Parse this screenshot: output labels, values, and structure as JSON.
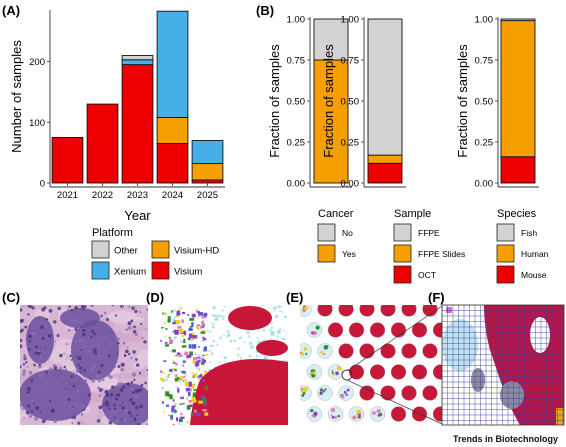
{
  "panel_labels": {
    "A": "(A)",
    "B": "(B)",
    "C": "(C)",
    "D": "(D)",
    "E": "(E)",
    "F": "(F)"
  },
  "credit": "Trends in Biotechnology",
  "colors": {
    "Other": "#d3d3d3",
    "Visium-HD": "#f5a000",
    "Xenium": "#45b0e8",
    "Visium": "#ee0000",
    "No": "#d3d3d3",
    "Yes": "#f5a000",
    "FFPE": "#d3d3d3",
    "FFPE Slides": "#f5a000",
    "OCT": "#ee0000",
    "Fish": "#d3d3d3",
    "Human": "#f5a000",
    "Mouse": "#ee0000",
    "tissue_purple": "#6a4f9e",
    "tissue_pink": "#c9a3c6",
    "spot_red": "#c8183a"
  },
  "chart_data": [
    {
      "type": "bar",
      "id": "A",
      "stacked": true,
      "categories": [
        "2021",
        "2022",
        "2023",
        "2024",
        "2025"
      ],
      "series": [
        {
          "name": "Visium",
          "values": [
            75,
            130,
            195,
            65,
            5
          ]
        },
        {
          "name": "Visium-HD",
          "values": [
            0,
            0,
            0,
            43,
            27
          ]
        },
        {
          "name": "Xenium",
          "values": [
            0,
            0,
            8,
            175,
            38
          ]
        },
        {
          "name": "Other",
          "values": [
            0,
            0,
            7,
            0,
            0
          ]
        }
      ],
      "xlabel": "Year",
      "ylabel": "Number of samples",
      "ylim": [
        0,
        285
      ],
      "yticks": [
        "0",
        "100",
        "200"
      ],
      "legend": {
        "title": "Platform",
        "entries": [
          "Other",
          "Visium-HD",
          "Xenium",
          "Visium"
        ],
        "placement": "bottom"
      }
    },
    {
      "type": "bar",
      "id": "B1",
      "stacked": true,
      "categories": [
        ""
      ],
      "series": [
        {
          "name": "Yes",
          "values": [
            0.75
          ]
        },
        {
          "name": "No",
          "values": [
            0.25
          ]
        }
      ],
      "ylabel": "Fraction of samples",
      "ylim": [
        0,
        1
      ],
      "yticks": [
        "0.00",
        "0.25",
        "0.50",
        "0.75",
        "1.00"
      ],
      "legend": {
        "title": "Cancer",
        "entries": [
          "No",
          "Yes"
        ],
        "placement": "bottom"
      }
    },
    {
      "type": "bar",
      "id": "B2",
      "stacked": true,
      "categories": [
        ""
      ],
      "series": [
        {
          "name": "OCT",
          "values": [
            0.12
          ]
        },
        {
          "name": "FFPE Slides",
          "values": [
            0.05
          ]
        },
        {
          "name": "FFPE",
          "values": [
            0.83
          ]
        }
      ],
      "ylabel": "Fraction of samples",
      "ylim": [
        0,
        1
      ],
      "yticks": [
        "0.00",
        "0.25",
        "0.50",
        "0.75",
        "1.00"
      ],
      "legend": {
        "title": "Sample",
        "entries": [
          "FFPE",
          "FFPE Slides",
          "OCT"
        ],
        "placement": "bottom"
      }
    },
    {
      "type": "bar",
      "id": "B3",
      "stacked": true,
      "categories": [
        ""
      ],
      "series": [
        {
          "name": "Mouse",
          "values": [
            0.16
          ]
        },
        {
          "name": "Human",
          "values": [
            0.83
          ]
        },
        {
          "name": "Fish",
          "values": [
            0.01
          ]
        }
      ],
      "ylabel": "Fraction of samples",
      "ylim": [
        0,
        1
      ],
      "yticks": [
        "0.00",
        "0.25",
        "0.50",
        "0.75",
        "1.00"
      ],
      "legend": {
        "title": "Species",
        "entries": [
          "Fish",
          "Human",
          "Mouse"
        ],
        "placement": "bottom"
      }
    }
  ]
}
